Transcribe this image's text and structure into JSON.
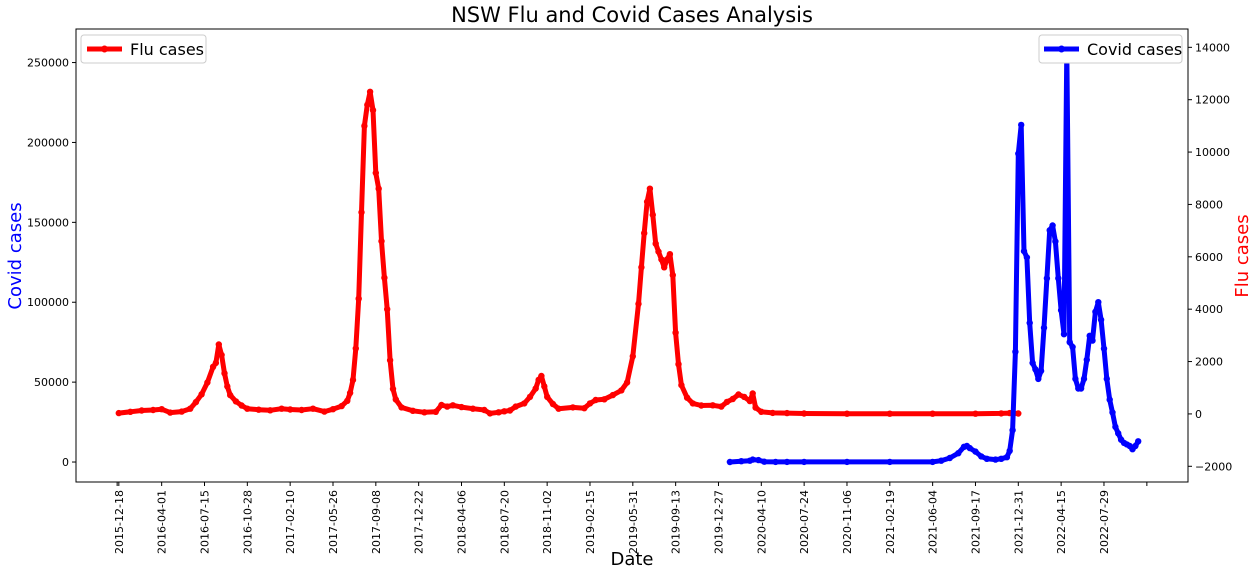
{
  "chart_data": {
    "type": "line",
    "title": "NSW Flu and Covid Cases Analysis",
    "xlabel": "Date",
    "ylabel_left": "Covid cases",
    "ylabel_right": "Flu cases",
    "ylabel_left_color": "#0000ff",
    "ylabel_right_color": "#ff0000",
    "x_ticks": [
      "2015-12-18",
      "2016-04-01",
      "2016-07-15",
      "2016-10-28",
      "2017-02-10",
      "2017-05-26",
      "2017-09-08",
      "2017-12-22",
      "2018-04-06",
      "2018-07-20",
      "2018-11-02",
      "2019-02-15",
      "2019-05-31",
      "2019-09-13",
      "2019-12-27",
      "2020-04-10",
      "2020-07-24",
      "2020-11-06",
      "2021-02-19",
      "2021-06-04",
      "2021-09-17",
      "2021-12-31",
      "2022-04-15",
      "2022-07-29"
    ],
    "xlim": [
      "2015-09-04",
      "2023-02-20"
    ],
    "y_left_ticks": [
      0,
      50000,
      100000,
      150000,
      200000,
      250000
    ],
    "y_left_lim": [
      -12500,
      271000
    ],
    "y_right_ticks": [
      -2000,
      0,
      2000,
      4000,
      6000,
      8000,
      10000,
      12000,
      14000
    ],
    "y_right_lim": [
      -2600,
      14700
    ],
    "grid": false,
    "legends": [
      {
        "label": "Flu cases",
        "placement": "top-left",
        "color": "#ff0000"
      },
      {
        "label": "Covid cases",
        "placement": "top-right",
        "color": "#0000ff"
      }
    ],
    "series": [
      {
        "name": "Flu cases",
        "axis": "right",
        "color": "#ff0000",
        "points": [
          [
            "2015-12-18",
            30
          ],
          [
            "2016-01-15",
            80
          ],
          [
            "2016-02-12",
            130
          ],
          [
            "2016-03-11",
            150
          ],
          [
            "2016-04-01",
            180
          ],
          [
            "2016-04-22",
            50
          ],
          [
            "2016-05-20",
            90
          ],
          [
            "2016-06-10",
            200
          ],
          [
            "2016-06-24",
            450
          ],
          [
            "2016-07-08",
            750
          ],
          [
            "2016-07-22",
            1200
          ],
          [
            "2016-08-05",
            1800
          ],
          [
            "2016-08-12",
            1950
          ],
          [
            "2016-08-19",
            2650
          ],
          [
            "2016-08-26",
            2250
          ],
          [
            "2016-09-02",
            1550
          ],
          [
            "2016-09-09",
            1050
          ],
          [
            "2016-09-16",
            720
          ],
          [
            "2016-09-30",
            480
          ],
          [
            "2016-10-14",
            320
          ],
          [
            "2016-10-28",
            200
          ],
          [
            "2016-11-25",
            160
          ],
          [
            "2016-12-23",
            140
          ],
          [
            "2017-01-20",
            200
          ],
          [
            "2017-02-10",
            170
          ],
          [
            "2017-03-10",
            150
          ],
          [
            "2017-04-07",
            200
          ],
          [
            "2017-05-05",
            90
          ],
          [
            "2017-05-26",
            180
          ],
          [
            "2017-06-16",
            300
          ],
          [
            "2017-06-30",
            500
          ],
          [
            "2017-07-07",
            800
          ],
          [
            "2017-07-14",
            1300
          ],
          [
            "2017-07-21",
            2500
          ],
          [
            "2017-07-28",
            4400
          ],
          [
            "2017-08-04",
            7700
          ],
          [
            "2017-08-11",
            11000
          ],
          [
            "2017-08-18",
            11800
          ],
          [
            "2017-08-25",
            12300
          ],
          [
            "2017-09-01",
            11600
          ],
          [
            "2017-09-08",
            9200
          ],
          [
            "2017-09-15",
            8600
          ],
          [
            "2017-09-22",
            6600
          ],
          [
            "2017-09-29",
            5200
          ],
          [
            "2017-10-06",
            4000
          ],
          [
            "2017-10-13",
            2050
          ],
          [
            "2017-10-20",
            950
          ],
          [
            "2017-10-27",
            550
          ],
          [
            "2017-11-10",
            250
          ],
          [
            "2017-12-08",
            120
          ],
          [
            "2018-01-05",
            60
          ],
          [
            "2018-02-02",
            80
          ],
          [
            "2018-02-16",
            340
          ],
          [
            "2018-03-02",
            280
          ],
          [
            "2018-03-16",
            330
          ],
          [
            "2018-04-06",
            260
          ],
          [
            "2018-05-04",
            200
          ],
          [
            "2018-06-01",
            150
          ],
          [
            "2018-06-15",
            20
          ],
          [
            "2018-07-06",
            60
          ],
          [
            "2018-07-20",
            100
          ],
          [
            "2018-08-03",
            130
          ],
          [
            "2018-08-17",
            280
          ],
          [
            "2018-09-07",
            400
          ],
          [
            "2018-09-21",
            650
          ],
          [
            "2018-10-05",
            970
          ],
          [
            "2018-10-12",
            1300
          ],
          [
            "2018-10-19",
            1450
          ],
          [
            "2018-10-26",
            1050
          ],
          [
            "2018-11-02",
            650
          ],
          [
            "2018-11-16",
            380
          ],
          [
            "2018-11-30",
            200
          ],
          [
            "2019-01-04",
            250
          ],
          [
            "2019-02-01",
            220
          ],
          [
            "2019-02-15",
            400
          ],
          [
            "2019-03-01",
            530
          ],
          [
            "2019-03-22",
            560
          ],
          [
            "2019-04-12",
            720
          ],
          [
            "2019-05-03",
            900
          ],
          [
            "2019-05-17",
            1200
          ],
          [
            "2019-05-31",
            2200
          ],
          [
            "2019-06-14",
            4200
          ],
          [
            "2019-06-21",
            5600
          ],
          [
            "2019-06-28",
            6900
          ],
          [
            "2019-07-05",
            8100
          ],
          [
            "2019-07-12",
            8600
          ],
          [
            "2019-07-19",
            7600
          ],
          [
            "2019-07-26",
            6500
          ],
          [
            "2019-08-02",
            6200
          ],
          [
            "2019-08-09",
            5900
          ],
          [
            "2019-08-16",
            5600
          ],
          [
            "2019-08-23",
            5900
          ],
          [
            "2019-08-30",
            6100
          ],
          [
            "2019-09-06",
            5300
          ],
          [
            "2019-09-13",
            3100
          ],
          [
            "2019-09-20",
            1900
          ],
          [
            "2019-09-27",
            1100
          ],
          [
            "2019-10-11",
            620
          ],
          [
            "2019-10-25",
            400
          ],
          [
            "2019-11-15",
            320
          ],
          [
            "2019-12-13",
            330
          ],
          [
            "2020-01-03",
            280
          ],
          [
            "2020-01-17",
            460
          ],
          [
            "2020-01-31",
            570
          ],
          [
            "2020-02-14",
            740
          ],
          [
            "2020-02-28",
            650
          ],
          [
            "2020-03-13",
            490
          ],
          [
            "2020-03-20",
            780
          ],
          [
            "2020-03-27",
            240
          ],
          [
            "2020-04-10",
            80
          ],
          [
            "2020-05-08",
            40
          ],
          [
            "2020-06-12",
            30
          ],
          [
            "2020-07-24",
            15
          ],
          [
            "2020-11-06",
            10
          ],
          [
            "2021-02-19",
            10
          ],
          [
            "2021-06-04",
            10
          ],
          [
            "2021-09-17",
            10
          ],
          [
            "2021-11-19",
            20
          ],
          [
            "2021-12-10",
            30
          ],
          [
            "2021-12-31",
            15
          ]
        ]
      },
      {
        "name": "Covid cases",
        "axis": "left",
        "color": "#0000ff",
        "points": [
          [
            "2020-01-24",
            0
          ],
          [
            "2020-02-21",
            500
          ],
          [
            "2020-03-13",
            800
          ],
          [
            "2020-03-20",
            1500
          ],
          [
            "2020-04-03",
            1200
          ],
          [
            "2020-04-17",
            200
          ],
          [
            "2020-05-15",
            100
          ],
          [
            "2020-06-12",
            50
          ],
          [
            "2020-07-24",
            100
          ],
          [
            "2020-11-06",
            50
          ],
          [
            "2021-02-19",
            50
          ],
          [
            "2021-06-04",
            100
          ],
          [
            "2021-06-25",
            800
          ],
          [
            "2021-07-16",
            2500
          ],
          [
            "2021-08-06",
            5500
          ],
          [
            "2021-08-20",
            9500
          ],
          [
            "2021-08-27",
            10000
          ],
          [
            "2021-09-03",
            8700
          ],
          [
            "2021-09-17",
            6500
          ],
          [
            "2021-10-01",
            3500
          ],
          [
            "2021-10-15",
            2000
          ],
          [
            "2021-11-05",
            1500
          ],
          [
            "2021-11-19",
            2000
          ],
          [
            "2021-12-03",
            3000
          ],
          [
            "2021-12-10",
            7000
          ],
          [
            "2021-12-17",
            20000
          ],
          [
            "2021-12-24",
            69000
          ],
          [
            "2021-12-31",
            193000
          ],
          [
            "2022-01-07",
            211000
          ],
          [
            "2022-01-14",
            132000
          ],
          [
            "2022-01-21",
            128000
          ],
          [
            "2022-01-28",
            87000
          ],
          [
            "2022-02-04",
            62000
          ],
          [
            "2022-02-11",
            58000
          ],
          [
            "2022-02-18",
            52000
          ],
          [
            "2022-02-25",
            57000
          ],
          [
            "2022-03-04",
            84000
          ],
          [
            "2022-03-11",
            115000
          ],
          [
            "2022-03-18",
            145000
          ],
          [
            "2022-03-25",
            148000
          ],
          [
            "2022-04-01",
            138000
          ],
          [
            "2022-04-08",
            115000
          ],
          [
            "2022-04-15",
            95000
          ],
          [
            "2022-04-22",
            80000
          ],
          [
            "2022-04-29",
            258000
          ],
          [
            "2022-05-06",
            75000
          ],
          [
            "2022-05-13",
            72000
          ],
          [
            "2022-05-20",
            52000
          ],
          [
            "2022-05-27",
            46000
          ],
          [
            "2022-06-03",
            46000
          ],
          [
            "2022-06-10",
            52000
          ],
          [
            "2022-06-17",
            64000
          ],
          [
            "2022-06-24",
            79000
          ],
          [
            "2022-07-01",
            76000
          ],
          [
            "2022-07-08",
            94000
          ],
          [
            "2022-07-15",
            100000
          ],
          [
            "2022-07-22",
            89000
          ],
          [
            "2022-07-29",
            71000
          ],
          [
            "2022-08-05",
            52000
          ],
          [
            "2022-08-12",
            39000
          ],
          [
            "2022-08-19",
            31000
          ],
          [
            "2022-08-26",
            22000
          ],
          [
            "2022-09-02",
            18000
          ],
          [
            "2022-09-09",
            14000
          ],
          [
            "2022-09-16",
            12000
          ],
          [
            "2022-09-23",
            11000
          ],
          [
            "2022-09-30",
            10000
          ],
          [
            "2022-10-07",
            8000
          ],
          [
            "2022-10-14",
            10000
          ],
          [
            "2022-10-21",
            13000
          ]
        ]
      }
    ]
  }
}
